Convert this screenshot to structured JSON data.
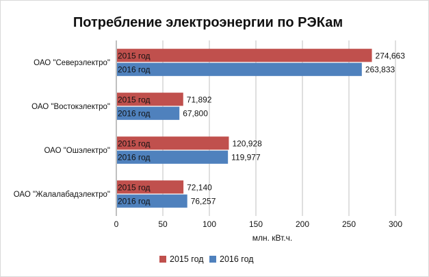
{
  "chart_data": {
    "type": "bar",
    "orientation": "horizontal",
    "title": "Потребление электроэнергии по РЭКам",
    "xlabel": "млн. кВт.ч.",
    "ylabel": "",
    "categories": [
      "ОАО \"Северэлектро\"",
      "ОАО \"Востокэлектро\"",
      "ОАО \"Ошэлектро\"",
      "ОАО \"Жалалабадэлектро\""
    ],
    "series": [
      {
        "name": "2015 год",
        "color": "#c0504d",
        "values": [
          274.663,
          71.892,
          120.928,
          72.14
        ],
        "value_labels": [
          "274,663",
          "71,892",
          "120,928",
          "72,140"
        ]
      },
      {
        "name": "2016 год",
        "color": "#4f81bd",
        "values": [
          263.833,
          67.8,
          119.977,
          76.257
        ],
        "value_labels": [
          "263,833",
          "67,800",
          "119,977",
          "76,257"
        ]
      }
    ],
    "xlim": [
      0,
      300
    ],
    "xticks": [
      "0",
      "50",
      "100",
      "150",
      "200",
      "250",
      "300"
    ],
    "grid": true,
    "legend_position": "bottom"
  }
}
